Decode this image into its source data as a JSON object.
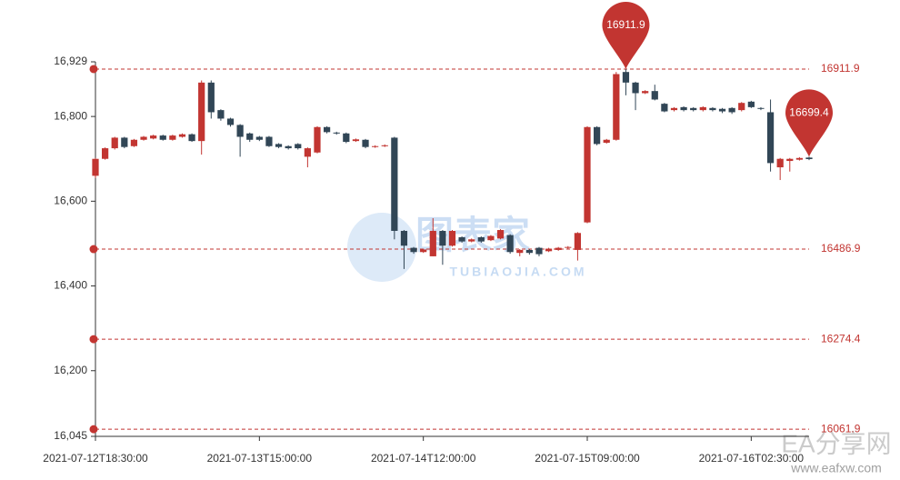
{
  "chart_data": {
    "type": "candlestick",
    "categories": [
      "2021-07-12T18:30:00",
      null,
      null,
      null,
      null,
      null,
      null,
      null,
      null,
      null,
      null,
      null,
      null,
      null,
      null,
      null,
      null,
      "2021-07-13T15:00:00",
      null,
      null,
      null,
      null,
      null,
      null,
      null,
      null,
      null,
      null,
      null,
      null,
      null,
      null,
      null,
      null,
      "2021-07-14T12:00:00",
      null,
      null,
      null,
      null,
      null,
      null,
      null,
      null,
      null,
      null,
      null,
      null,
      null,
      null,
      null,
      null,
      "2021-07-15T09:00:00",
      null,
      null,
      null,
      null,
      null,
      null,
      null,
      null,
      null,
      null,
      null,
      null,
      null,
      null,
      null,
      null,
      "2021-07-16T02:30:00",
      null,
      null,
      null,
      null,
      null,
      null
    ],
    "series": [
      {
        "up_color": "#c23531",
        "down_color": "#314656",
        "values": [
          [
            16660,
            16700,
            16655,
            16702
          ],
          [
            16700,
            16725,
            16698,
            16727
          ],
          [
            16725,
            16750,
            16722,
            16752
          ],
          [
            16750,
            16728,
            16725,
            16752
          ],
          [
            16730,
            16745,
            16728,
            16747
          ],
          [
            16745,
            16752,
            16743,
            16754
          ],
          [
            16748,
            16755,
            16746,
            16757
          ],
          [
            16755,
            16745,
            16743,
            16757
          ],
          [
            16745,
            16755,
            16743,
            16757
          ],
          [
            16752,
            16758,
            16750,
            16760
          ],
          [
            16758,
            16742,
            16740,
            16760
          ],
          [
            16742,
            16880,
            16710,
            16885
          ],
          [
            16880,
            16810,
            16795,
            16885
          ],
          [
            16815,
            16795,
            16790,
            16817
          ],
          [
            16795,
            16780,
            16776,
            16797
          ],
          [
            16780,
            16752,
            16705,
            16782
          ],
          [
            16760,
            16745,
            16740,
            16762
          ],
          [
            16752,
            16745,
            16742,
            16754
          ],
          [
            16752,
            16730,
            16728,
            16754
          ],
          [
            16735,
            16728,
            16725,
            16737
          ],
          [
            16730,
            16725,
            16722,
            16732
          ],
          [
            16735,
            16725,
            16722,
            16737
          ],
          [
            16705,
            16725,
            16680,
            16727
          ],
          [
            16715,
            16775,
            16713,
            16777
          ],
          [
            16775,
            16763,
            16760,
            16777
          ],
          [
            16762,
            16760,
            16757,
            16764
          ],
          [
            16760,
            16740,
            16737,
            16762
          ],
          [
            16742,
            16746,
            16740,
            16748
          ],
          [
            16745,
            16728,
            16725,
            16747
          ],
          [
            16728,
            16730,
            16726,
            16732
          ],
          [
            16730,
            16732,
            16728,
            16734
          ],
          [
            16750,
            16530,
            16510,
            16752
          ],
          [
            16530,
            16495,
            16440,
            16532
          ],
          [
            16490,
            16480,
            16476,
            16492
          ],
          [
            16480,
            16486,
            16478,
            16488
          ],
          [
            16470,
            16530,
            16470,
            16560
          ],
          [
            16530,
            16495,
            16450,
            16532
          ],
          [
            16495,
            16530,
            16493,
            16532
          ],
          [
            16515,
            16505,
            16502,
            16517
          ],
          [
            16505,
            16510,
            16503,
            16512
          ],
          [
            16515,
            16505,
            16502,
            16517
          ],
          [
            16508,
            16518,
            16506,
            16520
          ],
          [
            16512,
            16532,
            16510,
            16534
          ],
          [
            16520,
            16480,
            16476,
            16522
          ],
          [
            16478,
            16485,
            16470,
            16487
          ],
          [
            16485,
            16478,
            16474,
            16487
          ],
          [
            16490,
            16475,
            16470,
            16492
          ],
          [
            16482,
            16488,
            16480,
            16490
          ],
          [
            16485,
            16490,
            16483,
            16492
          ],
          [
            16490,
            16492,
            16488,
            16494
          ],
          [
            16485,
            16525,
            16460,
            16527
          ],
          [
            16550,
            16775,
            16548,
            16777
          ],
          [
            16775,
            16735,
            16732,
            16777
          ],
          [
            16738,
            16745,
            16736,
            16747
          ],
          [
            16745,
            16900,
            16743,
            16905
          ],
          [
            16905,
            16880,
            16850,
            16911.9
          ],
          [
            16880,
            16855,
            16815,
            16882
          ],
          [
            16855,
            16860,
            16853,
            16862
          ],
          [
            16860,
            16840,
            16838,
            16875
          ],
          [
            16830,
            16812,
            16810,
            16832
          ],
          [
            16815,
            16820,
            16812,
            16822
          ],
          [
            16822,
            16815,
            16812,
            16824
          ],
          [
            16820,
            16815,
            16812,
            16822
          ],
          [
            16815,
            16822,
            16812,
            16824
          ],
          [
            16820,
            16815,
            16812,
            16822
          ],
          [
            16818,
            16812,
            16808,
            16820
          ],
          [
            16820,
            16810,
            16806,
            16822
          ],
          [
            16815,
            16832,
            16812,
            16834
          ],
          [
            16835,
            16822,
            16820,
            16837
          ],
          [
            16820,
            16818,
            16815,
            16822
          ],
          [
            16810,
            16690,
            16670,
            16840
          ],
          [
            16680,
            16700,
            16650,
            16702
          ],
          [
            16695,
            16700,
            16670,
            16702
          ],
          [
            16698,
            16702,
            16696,
            16704
          ],
          [
            16703,
            16699.4,
            16697,
            16705
          ]
        ]
      }
    ],
    "ylim": [
      16045,
      16929
    ],
    "yticks": [
      {
        "value": 16045,
        "label": "16,045"
      },
      {
        "value": 16200,
        "label": "16,200"
      },
      {
        "value": 16400,
        "label": "16,400"
      },
      {
        "value": 16600,
        "label": "16,600"
      },
      {
        "value": 16800,
        "label": "16,800"
      },
      {
        "value": 16929,
        "label": "16,929"
      }
    ],
    "mark_lines": [
      16911.9,
      16486.9,
      16274.4,
      16061.9
    ],
    "mark_points": [
      16911.9,
      16699.4
    ],
    "mark_color": "#c23531",
    "watermarks": [
      "图表家",
      "TUBIAOJIA.COM",
      "EA分享网",
      "www.eafxw.com"
    ]
  }
}
